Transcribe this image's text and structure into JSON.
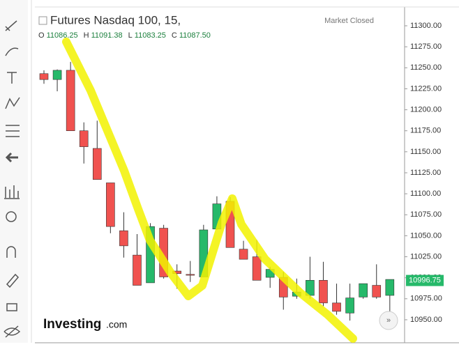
{
  "chart_data": {
    "type": "candlestick",
    "title": "Futures Nasdaq 100, 15,",
    "status": "Market Closed",
    "ohlc": [
      {
        "label": "O",
        "value": "11086.25"
      },
      {
        "label": "H",
        "value": "11091.38"
      },
      {
        "label": "L",
        "value": "11083.25"
      },
      {
        "label": "C",
        "value": "11087.50"
      }
    ],
    "brand": {
      "name": "Investing",
      "suffix": ".com"
    },
    "up_color": "#26b96a",
    "down_color": "#f0524f",
    "open": [
      11243,
      11236,
      11247,
      11175,
      11154,
      11113,
      11056,
      11027,
      10994,
      11059,
      11008,
      11004,
      11001,
      11058,
      11091,
      11034,
      11025,
      11000.5,
      11000.5,
      10978,
      10979,
      10997,
      10970,
      10958,
      10977,
      10991,
      10979
    ],
    "high": [
      11247,
      11248,
      11257,
      11185,
      11187,
      11113,
      11078,
      11052,
      11065,
      11063,
      11016,
      11020,
      11063,
      11097,
      11096,
      11044,
      11045,
      11013,
      11007,
      10999,
      11025,
      11019,
      10993,
      10993,
      10993,
      11016,
      10998
    ],
    "low": [
      11231,
      11222,
      11175,
      11136,
      11117,
      11053,
      11024,
      10991,
      10994,
      10999,
      10987,
      10995,
      11001,
      11057,
      11036,
      11022,
      10997,
      10988,
      10962,
      10975,
      10975,
      10966,
      10956,
      10949,
      10975,
      10975,
      10960
    ],
    "close": [
      11236,
      11247,
      11175,
      11156,
      11117,
      11061,
      11038,
      10991,
      11061,
      11001,
      11005,
      11003,
      11057,
      11088,
      11036,
      11022,
      10997,
      11010,
      10977,
      10983,
      10997,
      10970,
      10960,
      10976,
      10993,
      10977,
      10998
    ],
    "last_price": 10996.75,
    "ylim": [
      10922.6,
      11322.4
    ],
    "yticks": [
      {
        "value": 10950,
        "label": "10950.00"
      },
      {
        "value": 10975,
        "label": "10975.00"
      },
      {
        "value": 11000,
        "label": "11000.00"
      },
      {
        "value": 11025,
        "label": "11025.00"
      },
      {
        "value": 11050,
        "label": "11050.00"
      },
      {
        "value": 11075,
        "label": "11075.00"
      },
      {
        "value": 11100,
        "label": "11100.00"
      },
      {
        "value": 11125,
        "label": "11125.00"
      },
      {
        "value": 11150,
        "label": "11150.00"
      },
      {
        "value": 11175,
        "label": "11175.00"
      },
      {
        "value": 11200,
        "label": "11200.00"
      },
      {
        "value": 11225,
        "label": "11225.00"
      },
      {
        "value": 11250,
        "label": "11250.00"
      },
      {
        "value": 11275,
        "label": "11275.00"
      },
      {
        "value": 11300,
        "label": "11300.00"
      }
    ]
  }
}
